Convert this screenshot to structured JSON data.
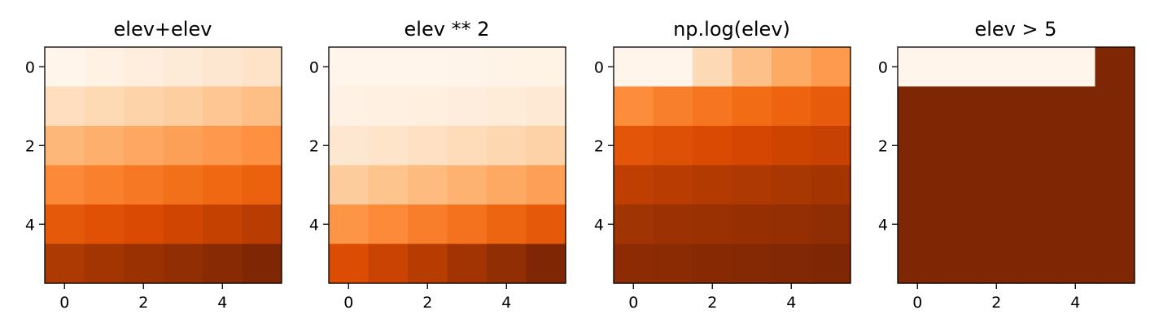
{
  "chart_data": [
    {
      "type": "heatmap",
      "title": "elev+elev",
      "colormap": "Oranges",
      "x_ticks": [
        "0",
        "2",
        "4"
      ],
      "y_ticks": [
        "0",
        "2",
        "4"
      ],
      "xlim": [
        -0.5,
        5.5
      ],
      "ylim": [
        5.5,
        -0.5
      ],
      "vmin": 0,
      "vmax": 70,
      "values": [
        [
          0,
          2,
          4,
          6,
          8,
          10
        ],
        [
          12,
          14,
          16,
          18,
          20,
          22
        ],
        [
          24,
          26,
          28,
          30,
          32,
          34
        ],
        [
          36,
          38,
          40,
          42,
          44,
          46
        ],
        [
          48,
          50,
          52,
          54,
          56,
          58
        ],
        [
          60,
          62,
          64,
          66,
          68,
          70
        ]
      ]
    },
    {
      "type": "heatmap",
      "title": "elev ** 2",
      "colormap": "Oranges",
      "x_ticks": [
        "0",
        "2",
        "4"
      ],
      "y_ticks": [
        "0",
        "2",
        "4"
      ],
      "xlim": [
        -0.5,
        5.5
      ],
      "ylim": [
        5.5,
        -0.5
      ],
      "vmin": 0,
      "vmax": 1225,
      "values": [
        [
          0,
          1,
          4,
          9,
          16,
          25
        ],
        [
          36,
          49,
          64,
          81,
          100,
          121
        ],
        [
          144,
          169,
          196,
          225,
          256,
          289
        ],
        [
          324,
          361,
          400,
          441,
          484,
          529
        ],
        [
          576,
          625,
          676,
          729,
          784,
          841
        ],
        [
          900,
          961,
          1024,
          1089,
          1156,
          1225
        ]
      ]
    },
    {
      "type": "heatmap",
      "title": "np.log(elev)",
      "colormap": "Oranges",
      "x_ticks": [
        "0",
        "2",
        "4"
      ],
      "y_ticks": [
        "0",
        "2",
        "4"
      ],
      "xlim": [
        -0.5,
        5.5
      ],
      "ylim": [
        5.5,
        -0.5
      ],
      "vmin": 0,
      "vmax": 3.555,
      "values": [
        [
          0,
          0,
          0.693,
          1.099,
          1.386,
          1.609
        ],
        [
          1.792,
          1.946,
          2.079,
          2.197,
          2.303,
          2.398
        ],
        [
          2.485,
          2.565,
          2.639,
          2.708,
          2.773,
          2.833
        ],
        [
          2.89,
          2.944,
          2.996,
          3.045,
          3.091,
          3.136
        ],
        [
          3.178,
          3.219,
          3.258,
          3.296,
          3.332,
          3.367
        ],
        [
          3.401,
          3.434,
          3.466,
          3.497,
          3.526,
          3.555
        ]
      ]
    },
    {
      "type": "heatmap",
      "title": "elev > 5",
      "colormap": "Oranges",
      "x_ticks": [
        "0",
        "2",
        "4"
      ],
      "y_ticks": [
        "0",
        "2",
        "4"
      ],
      "xlim": [
        -0.5,
        5.5
      ],
      "ylim": [
        5.5,
        -0.5
      ],
      "vmin": 0,
      "vmax": 1,
      "values": [
        [
          0,
          0,
          0,
          0,
          0,
          1
        ],
        [
          1,
          1,
          1,
          1,
          1,
          1
        ],
        [
          1,
          1,
          1,
          1,
          1,
          1
        ],
        [
          1,
          1,
          1,
          1,
          1,
          1
        ],
        [
          1,
          1,
          1,
          1,
          1,
          1
        ],
        [
          1,
          1,
          1,
          1,
          1,
          1
        ]
      ]
    }
  ]
}
